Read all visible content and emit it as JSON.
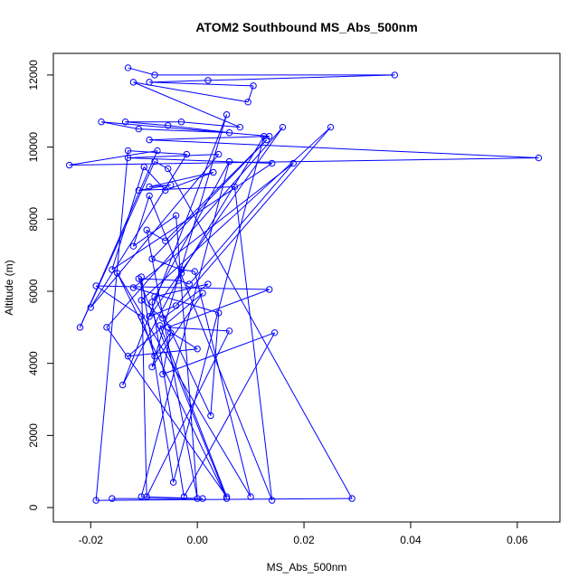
{
  "chart_data": {
    "type": "line",
    "title": "ATOM2 Southbound MS_Abs_500nm",
    "xlabel": "MS_Abs_500nm",
    "ylabel": "Altitude (m)",
    "xlim": [
      -0.027,
      0.068
    ],
    "ylim": [
      -400,
      12600
    ],
    "x_ticks": [
      -0.02,
      0.0,
      0.02,
      0.04,
      0.06
    ],
    "x_tick_labels": [
      "-0.02",
      "0.00",
      "0.02",
      "0.04",
      "0.06"
    ],
    "y_ticks": [
      0,
      2000,
      4000,
      6000,
      8000,
      10000,
      12000
    ],
    "y_tick_labels": [
      "0",
      "2000",
      "4000",
      "6000",
      "8000",
      "10000",
      "12000"
    ],
    "grid": false,
    "markers": "open-circle",
    "series": [
      {
        "color": "#0000ff",
        "x": [
          -0.013,
          -0.008,
          0.037,
          0.002,
          -0.009,
          0.0105,
          0.0095,
          -0.012,
          0.008,
          -0.003,
          -0.0135,
          -0.0055,
          0.006,
          -0.011,
          -0.018,
          0.0135,
          -0.009,
          0.064,
          -0.024,
          -0.0075,
          -0.022,
          -0.008,
          -0.0055,
          0.029,
          -0.019,
          -0.013,
          -0.002,
          -0.02,
          0.004,
          -0.013,
          0.014,
          -0.016,
          -0.01,
          -0.006,
          0.003,
          -0.009,
          -0.005,
          -0.011,
          0.007,
          0.014,
          -0.009,
          -0.012,
          -0.004,
          0.0,
          -0.0095,
          -0.006,
          0.013,
          -0.0085,
          -0.003,
          -0.0005,
          0.01,
          -0.015,
          0.0055,
          -0.011,
          -0.0035,
          -0.0015,
          0.018,
          -0.012,
          0.004,
          0.0025,
          -0.008,
          0.002,
          -0.0065,
          -0.0105,
          0.025,
          -0.004,
          -0.009,
          0.016,
          -0.017,
          0.0055,
          -0.007,
          0.0,
          -0.013,
          0.001,
          -0.0085,
          0.0055,
          -0.014,
          -0.003,
          0.0125,
          -0.0045,
          -0.0105,
          -0.0095,
          0.006,
          -0.0055,
          0.0135,
          -0.019,
          -0.0105,
          -0.008,
          -0.005,
          -0.0065,
          0.0145,
          -0.0025,
          -0.0085,
          0.006,
          -0.0105,
          0.001,
          -0.016
        ],
        "y": [
          12200,
          12000,
          12000,
          11850,
          11800,
          11700,
          11250,
          11800,
          10550,
          10700,
          10700,
          10600,
          10400,
          10500,
          10700,
          10300,
          10200,
          9700,
          9500,
          9900,
          5000,
          9600,
          9400,
          250,
          200,
          9900,
          9800,
          5550,
          9800,
          9700,
          9550,
          6600,
          9450,
          8800,
          9300,
          8900,
          8950,
          8800,
          8900,
          200,
          8650,
          7250,
          8100,
          250,
          7700,
          7400,
          10200,
          6900,
          6600,
          6550,
          300,
          6500,
          250,
          6350,
          6300,
          6200,
          9550,
          6100,
          5400,
          2550,
          5850,
          6200,
          5250,
          5750,
          10550,
          5600,
          5300,
          10550,
          5000,
          300,
          5050,
          4400,
          4200,
          5950,
          3900,
          10900,
          3400,
          6500,
          10300,
          700,
          6400,
          300,
          4900,
          5000,
          6050,
          6150,
          5300,
          4200,
          4850,
          3700,
          4850,
          300,
          5700,
          9600,
          300,
          250,
          250
        ]
      }
    ]
  }
}
